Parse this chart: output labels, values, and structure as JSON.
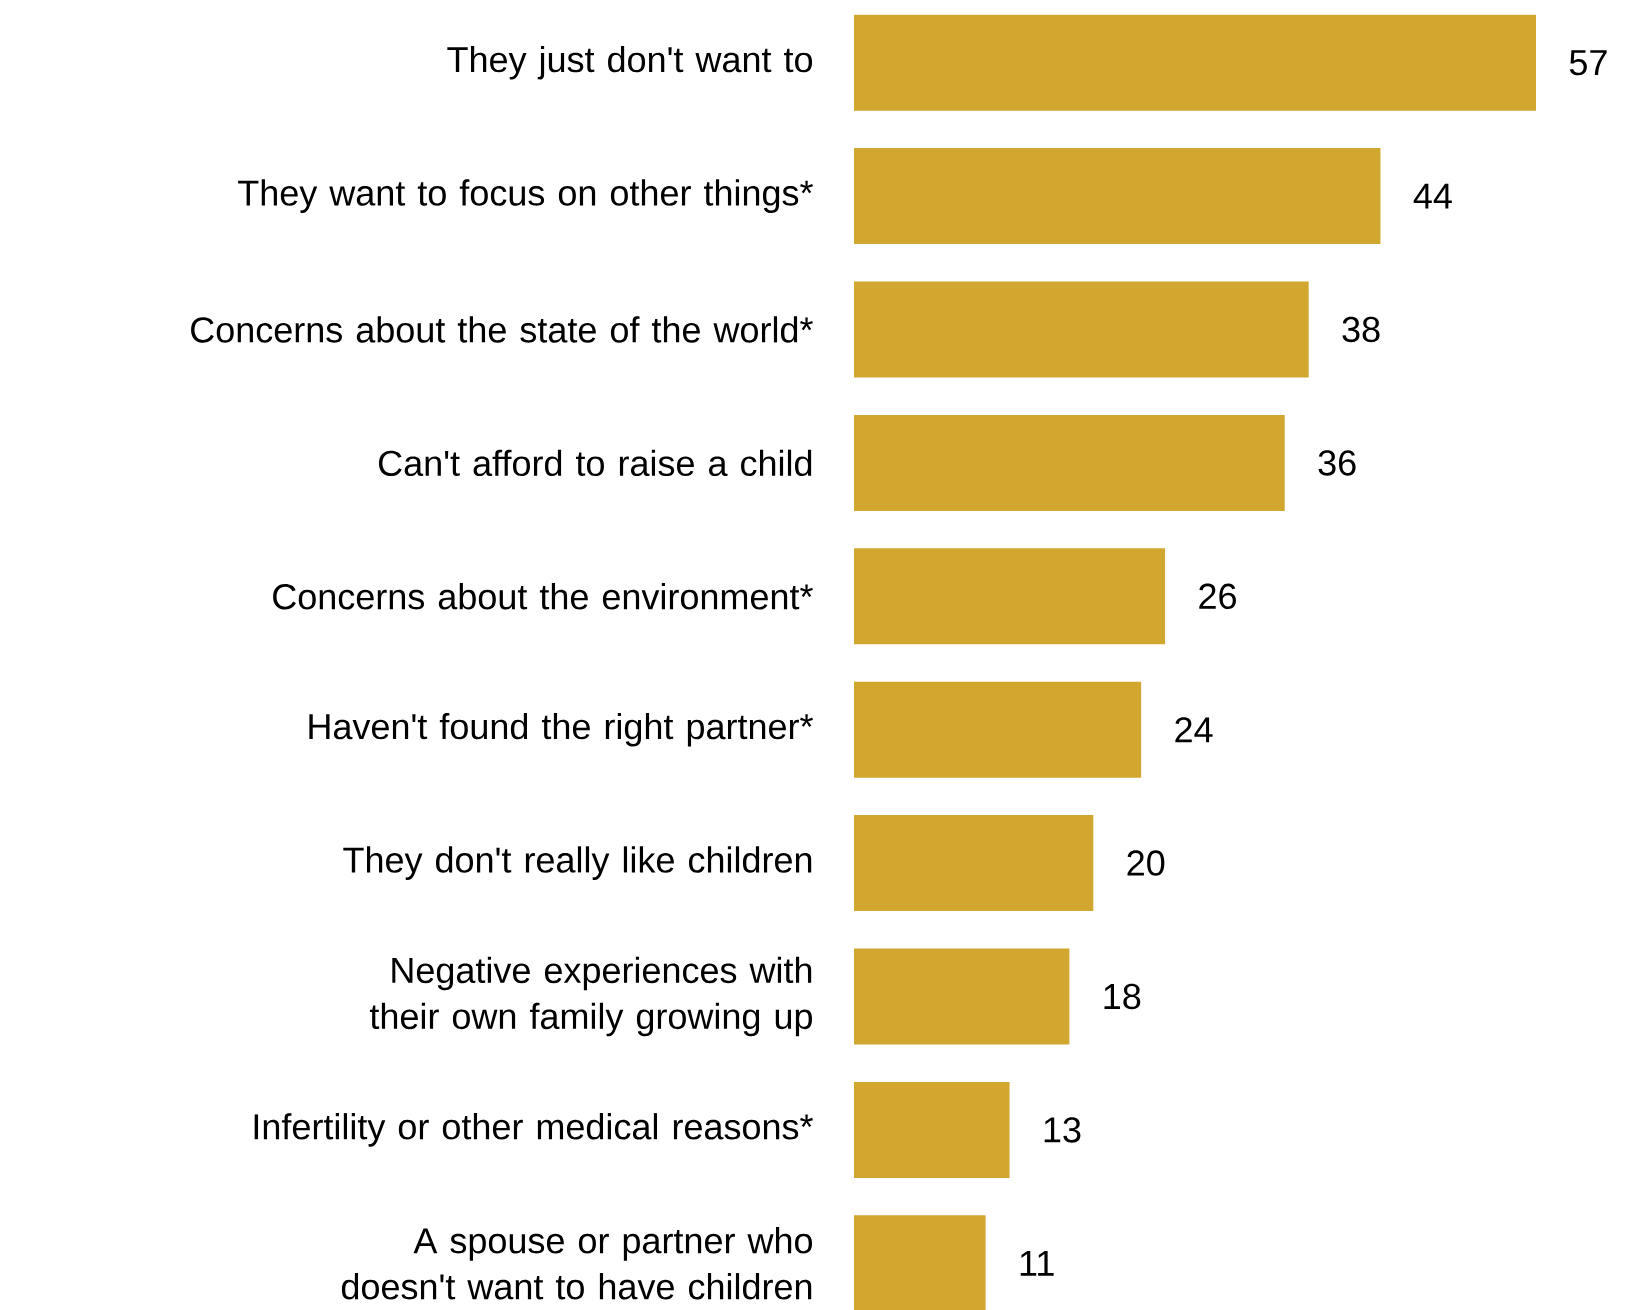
{
  "chart_data": {
    "type": "bar",
    "orientation": "horizontal",
    "color": "#d1a730",
    "data_labels": true,
    "categories": [
      "They just don't want to",
      "They want to focus on other things*",
      "Concerns about the state of the world*",
      "Can't afford to raise a child",
      "Concerns about the environment*",
      "Haven't found the right partner*",
      "They don't really like children",
      "Negative experiences with their own family growing up",
      "Infertility or other medical reasons*",
      "A spouse or partner who doesn't want to have children"
    ],
    "values": [
      57,
      44,
      38,
      36,
      26,
      24,
      20,
      18,
      13,
      11
    ]
  }
}
